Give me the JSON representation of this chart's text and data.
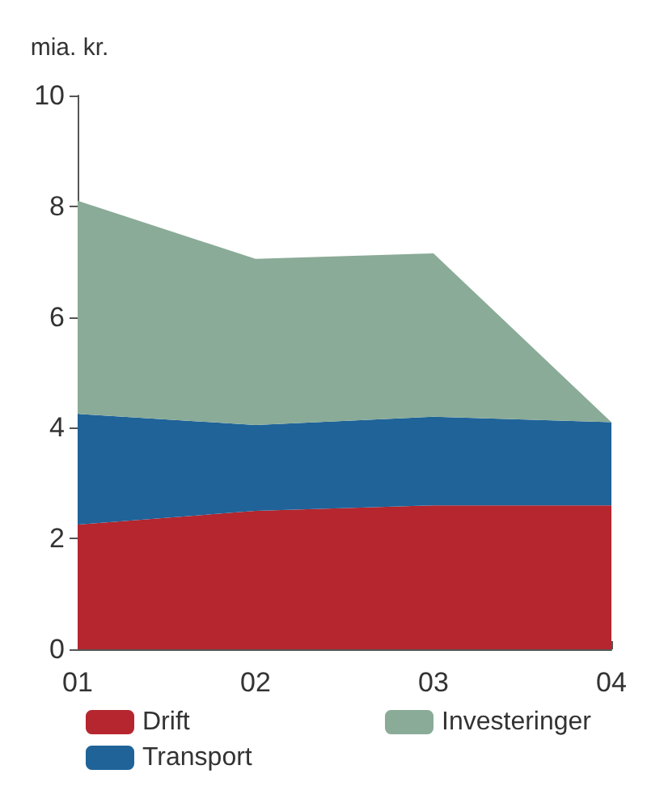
{
  "chart_data": {
    "type": "area",
    "ylabel": "mia. kr.",
    "categories": [
      "01",
      "02",
      "03",
      "04"
    ],
    "stacked": true,
    "series": [
      {
        "name": "Drift",
        "color": "#b5262e",
        "values": [
          2.25,
          2.5,
          2.6,
          2.6
        ]
      },
      {
        "name": "Transport",
        "color": "#1f6399",
        "values": [
          2.0,
          1.55,
          1.6,
          1.5
        ]
      },
      {
        "name": "Investeringer",
        "color": "#8aab97",
        "values": [
          3.85,
          3.0,
          2.95,
          0
        ]
      }
    ],
    "ylim": [
      0,
      10
    ],
    "yticks": [
      0,
      2,
      4,
      6,
      8,
      10
    ],
    "grid": false,
    "legend": "bottom"
  }
}
